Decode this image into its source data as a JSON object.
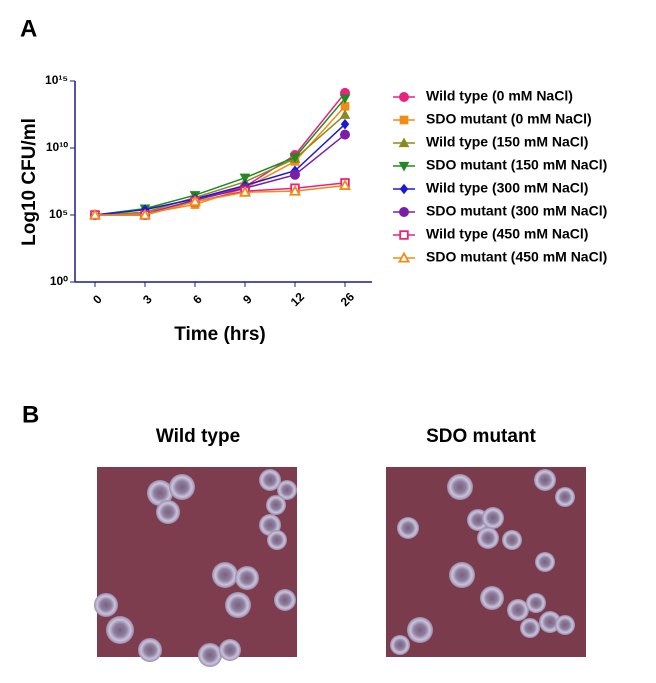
{
  "panel_labels": [
    "A",
    "B"
  ],
  "chart_data": {
    "type": "line",
    "x_label": "Time (hrs)",
    "y_label": "Log10 CFU/ml",
    "log_y": true,
    "categories": [
      "0",
      "3",
      "6",
      "9",
      "12",
      "26"
    ],
    "ylim": [
      1,
      1000000000000000.0
    ],
    "yticks": [
      {
        "value": 1,
        "label": "10⁰"
      },
      {
        "value": 100000.0,
        "label": "10⁵"
      },
      {
        "value": 10000000000.0,
        "label": "10¹⁰"
      },
      {
        "value": 1000000000000000.0,
        "label": "10¹⁵"
      }
    ],
    "legend": "right",
    "series": [
      {
        "name": "Wild type (0 mM NaCl)",
        "color": "#e8237f",
        "marker": "circle",
        "values": [
          100000.0,
          130000.0,
          1300000.0,
          13000000.0,
          3000000000.0,
          130000000000000.0
        ]
      },
      {
        "name": "SDO mutant (0 mM NaCl)",
        "color": "#f28a16",
        "marker": "square",
        "values": [
          100000.0,
          130000.0,
          600000.0,
          10000000.0,
          1000000000.0,
          13000000000000.0
        ]
      },
      {
        "name": "Wild type (150 mM NaCl)",
        "color": "#8a8a1e",
        "marker": "triangle",
        "values": [
          100000.0,
          160000.0,
          2000000.0,
          30000000.0,
          1600000000.0,
          3000000000000.0
        ]
      },
      {
        "name": "SDO mutant (150 mM NaCl)",
        "color": "#1f8a1f",
        "marker": "triangle-down",
        "values": [
          100000.0,
          300000.0,
          3000000.0,
          60000000.0,
          2000000000.0,
          50000000000000.0
        ]
      },
      {
        "name": "Wild type (300 mM NaCl)",
        "color": "#1a1ad6",
        "marker": "diamond",
        "values": [
          100000.0,
          250000.0,
          1600000.0,
          16000000.0,
          200000000.0,
          600000000000.0
        ]
      },
      {
        "name": "SDO mutant (300 mM NaCl)",
        "color": "#7a1ea8",
        "marker": "circle",
        "values": [
          100000.0,
          100000.0,
          1300000.0,
          10000000.0,
          100000000.0,
          100000000000.0
        ]
      },
      {
        "name": "Wild type (450 mM NaCl)",
        "color": "#e8237f",
        "marker": "square-open",
        "values": [
          100000.0,
          100000.0,
          1000000.0,
          6000000.0,
          10000000.0,
          25000000.0
        ]
      },
      {
        "name": "SDO mutant (450 mM NaCl)",
        "color": "#f28a16",
        "marker": "triangle-open",
        "values": [
          100000.0,
          100000.0,
          1000000.0,
          5000000.0,
          6000000.0,
          16000000.0
        ]
      }
    ]
  },
  "images": [
    {
      "title": "Wild type"
    },
    {
      "title": "SDO mutant"
    }
  ]
}
